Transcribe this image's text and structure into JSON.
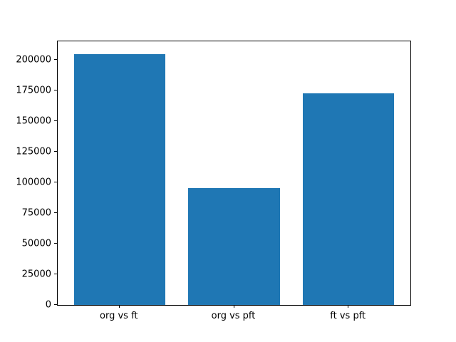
{
  "figure": {
    "background_color": "#ffffff",
    "frame_color": "#000000"
  },
  "chart_data": {
    "type": "bar",
    "title": "",
    "xlabel": "",
    "ylabel": "",
    "categories": [
      "org vs ft",
      "org vs pft",
      "ft vs pft"
    ],
    "values": [
      205000,
      95400,
      173000
    ],
    "bar_color": "#1f77b4",
    "ylim": [
      0,
      215250
    ],
    "yticks": [
      0,
      25000,
      50000,
      75000,
      100000,
      125000,
      150000,
      175000,
      200000
    ],
    "ytick_labels": [
      "0",
      "25000",
      "50000",
      "75000",
      "100000",
      "125000",
      "150000",
      "175000",
      "200000"
    ],
    "grid": false,
    "legend": null
  }
}
